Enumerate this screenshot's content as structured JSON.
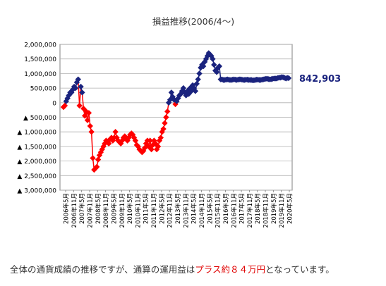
{
  "chart_data": {
    "type": "line",
    "title": "損益推移(2006/4～)",
    "xlabel": "",
    "ylabel": "",
    "ylim": [
      -3000000,
      2000000
    ],
    "y_ticks": [
      {
        "value": 2000000,
        "label": "2,000,000"
      },
      {
        "value": 1500000,
        "label": "1,500,000"
      },
      {
        "value": 1000000,
        "label": "1,000,000"
      },
      {
        "value": 500000,
        "label": "500,000"
      },
      {
        "value": 0,
        "label": "0"
      },
      {
        "value": -500000,
        "label": "▲ 500,000"
      },
      {
        "value": -1000000,
        "label": "▲ 1,000,000"
      },
      {
        "value": -1500000,
        "label": "▲ 1,500,000"
      },
      {
        "value": -2000000,
        "label": "▲ 2,000,000"
      },
      {
        "value": -2500000,
        "label": "▲ 2,500,000"
      },
      {
        "value": -3000000,
        "label": "▲ 3,000,000"
      }
    ],
    "x_tick_labels": [
      "2006年5月",
      "2006年11月",
      "2007年5月",
      "2007年11月",
      "2008年5月",
      "2008年11月",
      "2009年5月",
      "2009年11月",
      "2010年5月",
      "2010年11月",
      "2011年5月",
      "2011年11月",
      "2012年5月",
      "2012年11月",
      "2013年5月",
      "2013年11月",
      "2014年5月",
      "2014年11月",
      "2015年5月",
      "2015年11月",
      "2016年5月",
      "2016年11月",
      "2017年5月",
      "2017年11月",
      "2018年5月",
      "2018年11月",
      "2019年5月",
      "2019年11月",
      "2020年5月"
    ],
    "grid": true,
    "colors": {
      "positive": "#1a237e",
      "negative": "#ff0000",
      "final_label": "#1a237e"
    },
    "final_value_label": "842,903",
    "series": [
      {
        "values": [
          -150000,
          -100000,
          50000,
          150000,
          250000,
          350000,
          350000,
          450000,
          550000,
          500000,
          700000,
          800000,
          -100000,
          550000,
          350000,
          -200000,
          -450000,
          -300000,
          -600000,
          -350000,
          -800000,
          -1000000,
          -1900000,
          -2300000,
          -2250000,
          -2200000,
          -1950000,
          -1800000,
          -1700000,
          -1600000,
          -1500000,
          -1400000,
          -1300000,
          -1350000,
          -1400000,
          -1250000,
          -1200000,
          -1300000,
          -1200000,
          -1000000,
          -1200000,
          -1300000,
          -1350000,
          -1400000,
          -1300000,
          -1200000,
          -1150000,
          -1250000,
          -1300000,
          -1200000,
          -1100000,
          -1050000,
          -1100000,
          -1200000,
          -1300000,
          -1450000,
          -1500000,
          -1600000,
          -1650000,
          -1700000,
          -1650000,
          -1550000,
          -1400000,
          -1300000,
          -1500000,
          -1300000,
          -1600000,
          -1450000,
          -1300000,
          -1400000,
          -1600000,
          -1500000,
          -1300000,
          -1200000,
          -1000000,
          -900000,
          -700000,
          -500000,
          -300000,
          0,
          100000,
          350000,
          200000,
          100000,
          -50000,
          50000,
          150000,
          250000,
          300000,
          400000,
          500000,
          350000,
          250000,
          400000,
          300000,
          500000,
          400000,
          600000,
          500000,
          400000,
          650000,
          800000,
          1000000,
          1200000,
          1300000,
          1250000,
          1400000,
          1500000,
          1600000,
          1700000,
          1650000,
          1600000,
          1500000,
          1300000,
          1100000,
          1050000,
          1200000,
          1250000,
          800000,
          800000,
          780000,
          780000,
          790000,
          800000,
          790000,
          780000,
          780000,
          790000,
          800000,
          790000,
          780000,
          790000,
          800000,
          800000,
          790000,
          780000,
          780000,
          790000,
          790000,
          780000,
          780000,
          780000,
          770000,
          770000,
          780000,
          790000,
          790000,
          780000,
          780000,
          790000,
          800000,
          810000,
          820000,
          820000,
          810000,
          800000,
          810000,
          820000,
          830000,
          830000,
          830000,
          850000,
          860000,
          860000,
          880000,
          870000,
          850000,
          830000,
          850000,
          842903
        ]
      }
    ]
  },
  "caption": {
    "before": "全体の通貨成績の推移ですが、通算の運用益は",
    "highlight": "プラス約８４万円",
    "after": "となっています。"
  }
}
